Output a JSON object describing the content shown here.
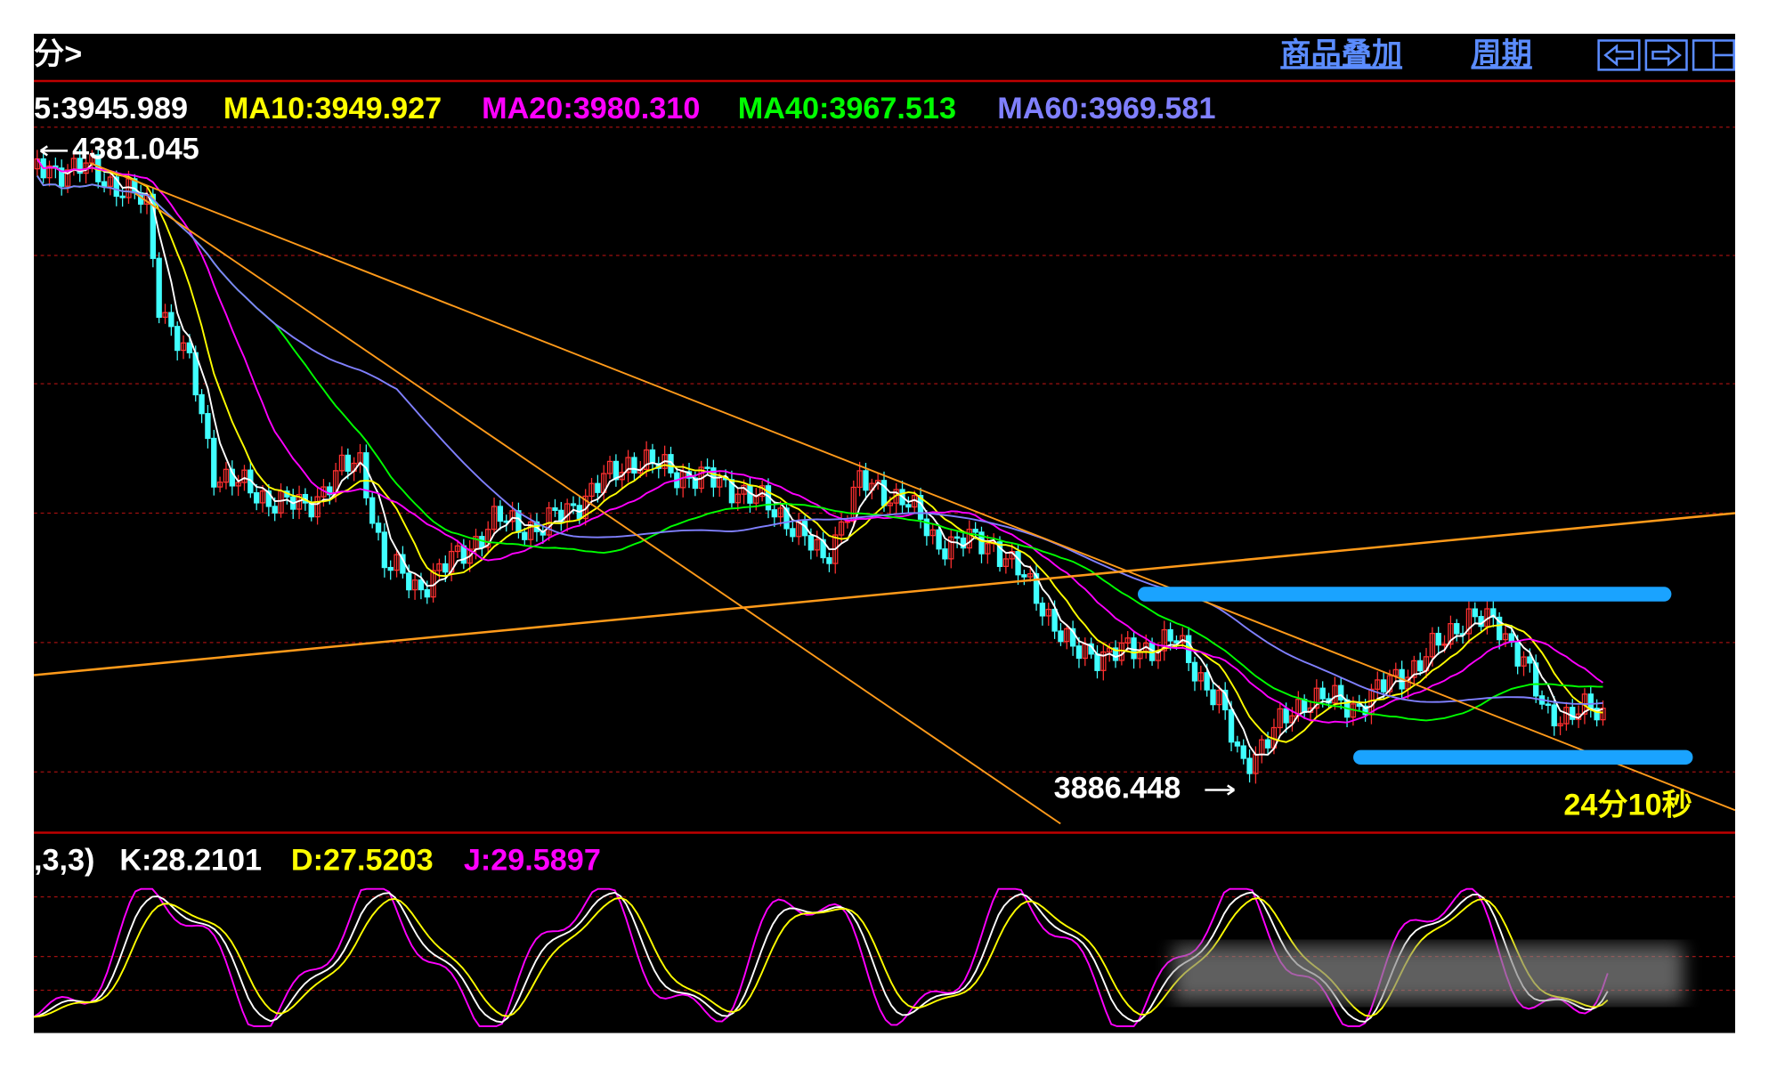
{
  "toolbar": {
    "period_tab": "分>",
    "overlay": "商品叠加",
    "cycle": "周期"
  },
  "ma_legend": [
    "5:3945.989",
    "MA10:3949.927",
    "MA20:3980.310",
    "MA40:3967.513",
    "MA60:3969.581"
  ],
  "annotations": {
    "high": "4381.045",
    "low": "3886.448",
    "countdown": "24分10秒"
  },
  "kdj_legend": [
    ",3,3)",
    "K:28.2101",
    "D:27.5203",
    "J:29.5897"
  ]
}
